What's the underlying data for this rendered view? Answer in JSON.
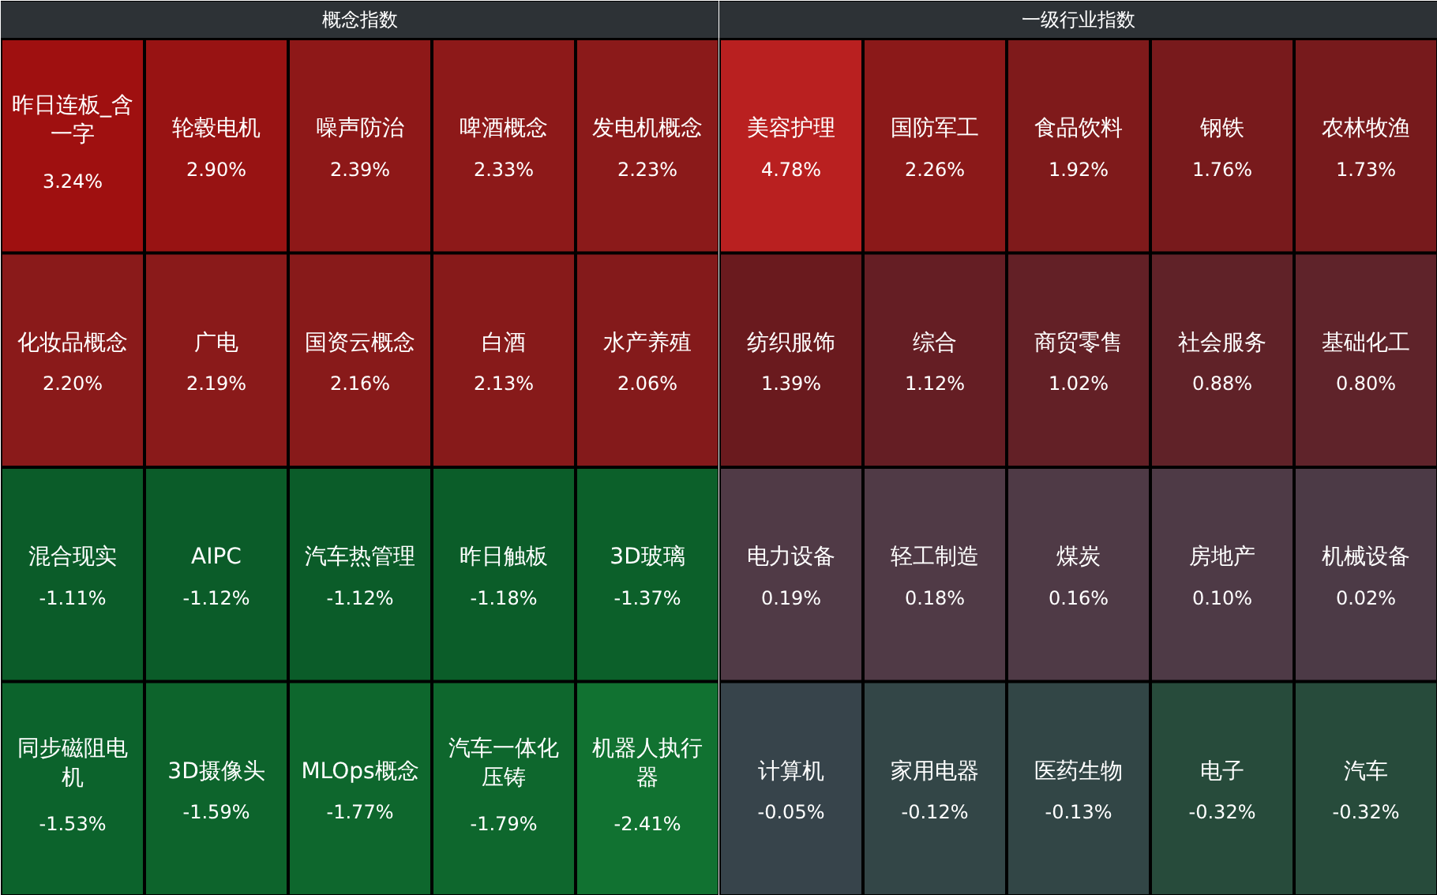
{
  "chart_data": [
    {
      "type": "other",
      "title": "概念指数",
      "categories": [
        "昨日连板_含一字",
        "轮毂电机",
        "噪声防治",
        "啤酒概念",
        "发电机概念",
        "化妆品概念",
        "广电",
        "国资云概念",
        "白酒",
        "水产养殖",
        "混合现实",
        "AIPC",
        "汽车热管理",
        "昨日触板",
        "3D玻璃",
        "同步磁阻电机",
        "3D摄像头",
        "MLOps概念",
        "汽车一体化压铸",
        "机器人执行器"
      ],
      "values": [
        3.24,
        2.9,
        2.39,
        2.33,
        2.23,
        2.2,
        2.19,
        2.16,
        2.13,
        2.06,
        -1.11,
        -1.12,
        -1.12,
        -1.18,
        -1.37,
        -1.53,
        -1.59,
        -1.77,
        -1.79,
        -2.41
      ],
      "value_labels": [
        "3.24%",
        "2.90%",
        "2.39%",
        "2.33%",
        "2.23%",
        "2.20%",
        "2.19%",
        "2.16%",
        "2.13%",
        "2.06%",
        "-1.11%",
        "-1.12%",
        "-1.12%",
        "-1.18%",
        "-1.37%",
        "-1.53%",
        "-1.59%",
        "-1.77%",
        "-1.79%",
        "-2.41%"
      ]
    },
    {
      "type": "other",
      "title": "一级行业指数",
      "categories": [
        "美容护理",
        "国防军工",
        "食品饮料",
        "钢铁",
        "农林牧渔",
        "纺织服饰",
        "综合",
        "商贸零售",
        "社会服务",
        "基础化工",
        "电力设备",
        "轻工制造",
        "煤炭",
        "房地产",
        "机械设备",
        "计算机",
        "家用电器",
        "医药生物",
        "电子",
        "汽车"
      ],
      "values": [
        4.78,
        2.26,
        1.92,
        1.76,
        1.73,
        1.39,
        1.12,
        1.02,
        0.88,
        0.8,
        0.19,
        0.18,
        0.16,
        0.1,
        0.02,
        -0.05,
        -0.12,
        -0.13,
        -0.32,
        -0.32
      ],
      "value_labels": [
        "4.78%",
        "2.26%",
        "1.92%",
        "1.76%",
        "1.73%",
        "1.39%",
        "1.12%",
        "1.02%",
        "0.88%",
        "0.80%",
        "0.19%",
        "0.18%",
        "0.16%",
        "0.10%",
        "0.02%",
        "-0.05%",
        "-0.12%",
        "-0.13%",
        "-0.32%",
        "-0.32%"
      ]
    }
  ]
}
